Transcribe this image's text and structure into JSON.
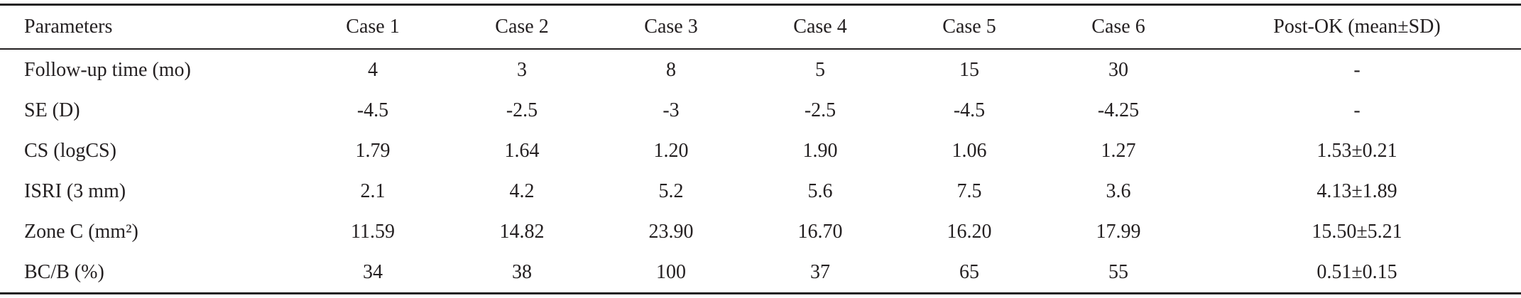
{
  "table": {
    "header": [
      "Parameters",
      "Case 1",
      "Case 2",
      "Case 3",
      "Case 4",
      "Case 5",
      "Case 6",
      "Post-OK (mean±SD)"
    ],
    "rows": [
      [
        "Follow-up time (mo)",
        "4",
        "3",
        "8",
        "5",
        "15",
        "30",
        "-"
      ],
      [
        "SE (D)",
        "-4.5",
        "-2.5",
        "-3",
        "-2.5",
        "-4.5",
        "-4.25",
        "-"
      ],
      [
        "CS (logCS)",
        "1.79",
        "1.64",
        "1.20",
        "1.90",
        "1.06",
        "1.27",
        "1.53±0.21"
      ],
      [
        "ISRI (3 mm)",
        "2.1",
        "4.2",
        "5.2",
        "5.6",
        "7.5",
        "3.6",
        "4.13±1.89"
      ],
      [
        "Zone C (mm²)",
        "11.59",
        "14.82",
        "23.90",
        "16.70",
        "16.20",
        "17.99",
        "15.50±5.21"
      ],
      [
        "BC/B (%)",
        "34",
        "38",
        "100",
        "37",
        "65",
        "55",
        "0.51±0.15"
      ]
    ]
  }
}
